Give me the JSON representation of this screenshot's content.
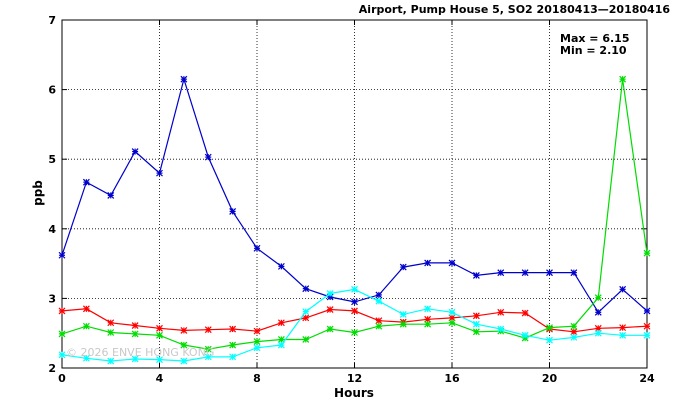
{
  "chart_data": {
    "type": "line",
    "title": "Airport, Pump House 5, SO2 20180413—20180416",
    "xlabel": "Hours",
    "ylabel": "ppb",
    "xlim": [
      0,
      24
    ],
    "ylim": [
      2,
      7
    ],
    "xticks": [
      "0",
      "4",
      "8",
      "12",
      "16",
      "20",
      "24"
    ],
    "yticks": [
      "2",
      "3",
      "4",
      "5",
      "6",
      "7"
    ],
    "grid": true,
    "annotations": {
      "max": "Max = 6.15",
      "min": "Min = 2.10"
    },
    "watermark": "© 2026 ENVE HONG KONG",
    "x": [
      0,
      1,
      2,
      3,
      4,
      5,
      6,
      7,
      8,
      9,
      10,
      11,
      12,
      13,
      14,
      15,
      16,
      17,
      18,
      19,
      20,
      21,
      22,
      23,
      24
    ],
    "series": [
      {
        "color": "#0000cc",
        "values": [
          3.62,
          4.67,
          4.48,
          5.11,
          4.8,
          6.15,
          5.03,
          4.25,
          3.72,
          3.46,
          3.14,
          3.02,
          2.95,
          3.05,
          3.45,
          3.51,
          3.51,
          3.33,
          3.37,
          3.37,
          3.37,
          3.37,
          2.8,
          3.13,
          2.82
        ]
      },
      {
        "color": "#ff0000",
        "values": [
          2.82,
          2.85,
          2.65,
          2.61,
          2.57,
          2.54,
          2.55,
          2.56,
          2.53,
          2.65,
          2.72,
          2.84,
          2.82,
          2.68,
          2.66,
          2.7,
          2.72,
          2.75,
          2.8,
          2.79,
          2.56,
          2.52,
          2.57,
          2.58,
          2.6
        ]
      },
      {
        "color": "#00dd00",
        "values": [
          2.49,
          2.6,
          2.51,
          2.49,
          2.47,
          2.33,
          2.27,
          2.33,
          2.38,
          2.41,
          2.41,
          2.56,
          2.51,
          2.6,
          2.63,
          2.63,
          2.65,
          2.52,
          2.53,
          2.43,
          2.58,
          2.6,
          3.01,
          6.15,
          3.65
        ]
      },
      {
        "color": "#00ffff",
        "values": [
          2.19,
          2.14,
          2.1,
          2.13,
          2.12,
          2.1,
          2.16,
          2.16,
          2.29,
          2.33,
          2.81,
          3.07,
          3.13,
          2.96,
          2.77,
          2.85,
          2.8,
          2.63,
          2.56,
          2.47,
          2.4,
          2.44,
          2.5,
          2.47,
          2.47
        ]
      }
    ]
  }
}
